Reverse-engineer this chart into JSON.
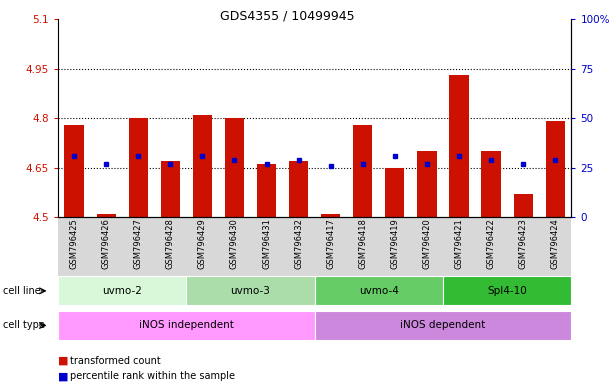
{
  "title": "GDS4355 / 10499945",
  "samples": [
    "GSM796425",
    "GSM796426",
    "GSM796427",
    "GSM796428",
    "GSM796429",
    "GSM796430",
    "GSM796431",
    "GSM796432",
    "GSM796417",
    "GSM796418",
    "GSM796419",
    "GSM796420",
    "GSM796421",
    "GSM796422",
    "GSM796423",
    "GSM796424"
  ],
  "bar_tops": [
    4.78,
    4.51,
    4.8,
    4.67,
    4.81,
    4.8,
    4.66,
    4.67,
    4.51,
    4.78,
    4.65,
    4.7,
    4.93,
    4.7,
    4.57,
    4.79
  ],
  "blue_vals": [
    4.685,
    4.66,
    4.685,
    4.66,
    4.685,
    4.672,
    4.66,
    4.672,
    4.655,
    4.66,
    4.685,
    4.66,
    4.685,
    4.672,
    4.66,
    4.672
  ],
  "bar_baseline": 4.5,
  "ylim_left": [
    4.5,
    5.1
  ],
  "ylim_right": [
    0,
    100
  ],
  "yticks_left": [
    4.5,
    4.65,
    4.8,
    4.95,
    5.1
  ],
  "yticks_right": [
    0,
    25,
    50,
    75,
    100
  ],
  "ytick_labels_left": [
    "4.5",
    "4.65",
    "4.8",
    "4.95",
    "5.1"
  ],
  "ytick_labels_right": [
    "0",
    "25",
    "50",
    "75",
    "100%"
  ],
  "hlines": [
    4.65,
    4.8,
    4.95
  ],
  "cell_lines": [
    {
      "label": "uvmo-2",
      "start": 0,
      "end": 4,
      "color": "#d9f7d9"
    },
    {
      "label": "uvmo-3",
      "start": 4,
      "end": 8,
      "color": "#aaddaa"
    },
    {
      "label": "uvmo-4",
      "start": 8,
      "end": 12,
      "color": "#66cc66"
    },
    {
      "label": "Spl4-10",
      "start": 12,
      "end": 16,
      "color": "#33bb33"
    }
  ],
  "cell_types": [
    {
      "label": "iNOS independent",
      "start": 0,
      "end": 8,
      "color": "#ff99ff"
    },
    {
      "label": "iNOS dependent",
      "start": 8,
      "end": 16,
      "color": "#cc88dd"
    }
  ],
  "bar_color": "#cc1100",
  "blue_color": "#0000cc",
  "bg_color": "#ffffff",
  "label_color_left": "#cc1100",
  "label_color_right": "#0000cc",
  "xtick_bg": "#d8d8d8",
  "cell_line_label": "cell line",
  "cell_type_label": "cell type"
}
